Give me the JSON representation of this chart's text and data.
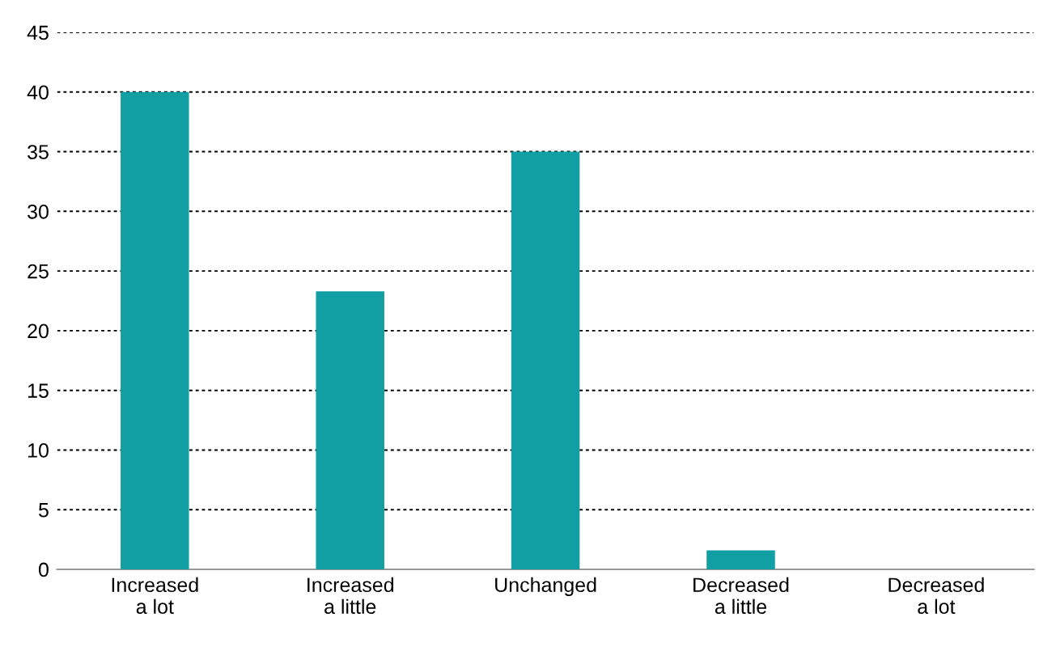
{
  "chart_data": {
    "type": "bar",
    "categories": [
      "Increased\na lot",
      "Increased\na little",
      "Unchanged",
      "Decreased\na little",
      "Decreased\na lot"
    ],
    "values": [
      40,
      23.3,
      35,
      1.6,
      0
    ],
    "color": "#119fa4",
    "ylim": [
      0,
      45
    ],
    "yticks": [
      0,
      5,
      10,
      15,
      20,
      25,
      30,
      35,
      40,
      45
    ],
    "grid": "y"
  }
}
